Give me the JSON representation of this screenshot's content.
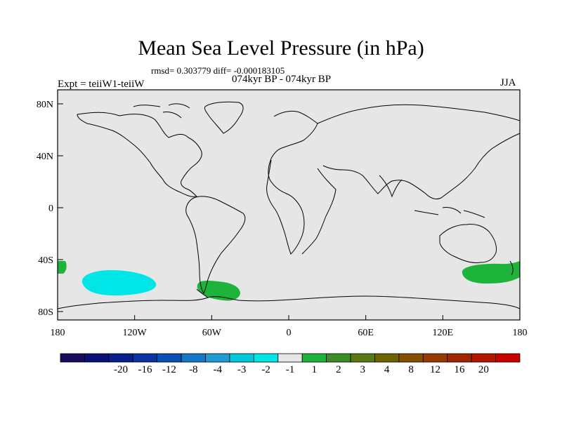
{
  "title": "Mean Sea Level Pressure (in hPa)",
  "stats": "rmsd= 0.303779 diff= -0.000183105",
  "period": "074kyr BP - 074kyr BP",
  "experiment": "Expt = teiiW1-teiiW",
  "season": "JJA",
  "map": {
    "background_color": "#e6e6e6",
    "lat_ticks": [
      "80N",
      "40N",
      "0",
      "40S",
      "80S"
    ],
    "lon_ticks": [
      "180",
      "120W",
      "60W",
      "0",
      "60E",
      "120E",
      "180"
    ]
  },
  "colorbar": {
    "colors": [
      "#1a0a5c",
      "#0a0f7a",
      "#0a1e8c",
      "#0a32a0",
      "#0a50b4",
      "#1478c8",
      "#1e9bd2",
      "#00c8dc",
      "#00e6e6",
      "#e6e6e6",
      "#1eb43c",
      "#3c8c28",
      "#5a7814",
      "#6e6400",
      "#825000",
      "#963c00",
      "#a02800",
      "#b41400",
      "#c80000"
    ],
    "labels": [
      "-20",
      "-16",
      "-12",
      "-8",
      "-4",
      "-3",
      "-2",
      "-1",
      "1",
      "2",
      "3",
      "4",
      "8",
      "12",
      "16",
      "20"
    ]
  },
  "anomaly_regions": [
    {
      "name": "south-pacific-negative",
      "color": "#00e6e6"
    },
    {
      "name": "south-atlantic-positive",
      "color": "#1eb43c"
    },
    {
      "name": "south-indian-positive",
      "color": "#1eb43c"
    },
    {
      "name": "dateline-positive",
      "color": "#1eb43c"
    }
  ]
}
